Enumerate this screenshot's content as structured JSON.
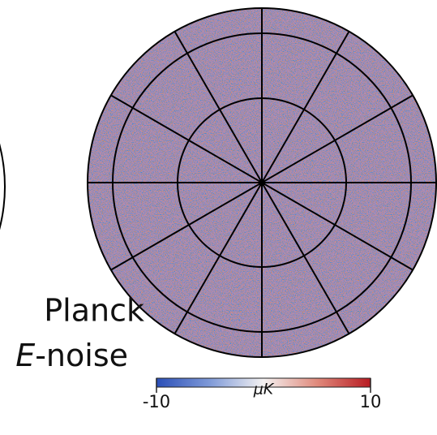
{
  "label": {
    "line1": "Planck",
    "line2_italic": "E",
    "line2_rest": "-noise"
  },
  "colorbar": {
    "unit": "μK",
    "ticks": [
      -10,
      10
    ]
  }
}
